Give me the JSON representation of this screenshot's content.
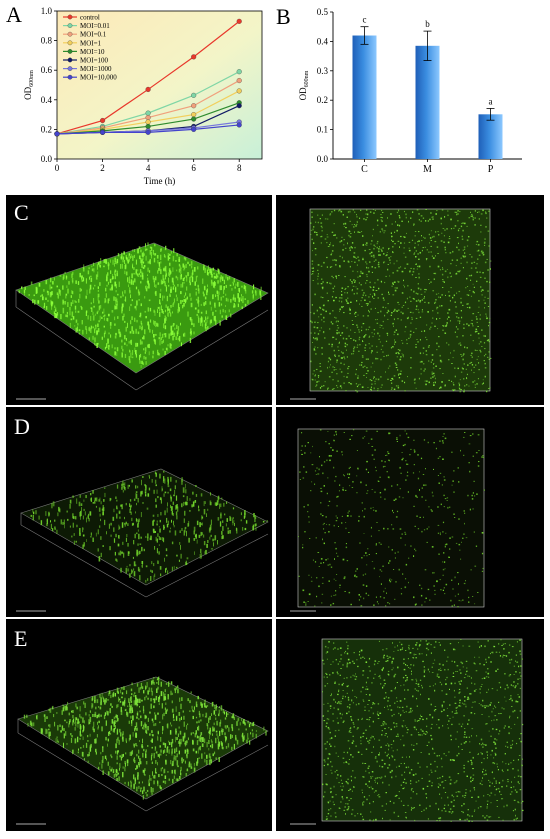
{
  "panels": {
    "a": "A",
    "b": "B",
    "c": "C",
    "d": "D",
    "e": "E"
  },
  "chart_data": [
    {
      "type": "line",
      "panel": "A",
      "x": [
        0,
        2,
        4,
        6,
        8
      ],
      "xlabel": "Time (h)",
      "ylabel_main": "OD",
      "ylabel_sub": "600nm",
      "xlim": [
        0,
        9
      ],
      "ylim": [
        0.0,
        1.0
      ],
      "xticks": [
        0,
        2,
        4,
        6,
        8
      ],
      "yticks": [
        0.0,
        0.2,
        0.4,
        0.6,
        0.8,
        1.0
      ],
      "legend_position": "top-left",
      "background": "gradient",
      "series": [
        {
          "name": "control",
          "color": "#e8382c",
          "values": [
            0.17,
            0.26,
            0.47,
            0.69,
            0.93
          ]
        },
        {
          "name": "MOI=0.01",
          "color": "#7fd6a6",
          "values": [
            0.17,
            0.22,
            0.31,
            0.43,
            0.59
          ]
        },
        {
          "name": "MOI=0.1",
          "color": "#f0a07c",
          "values": [
            0.17,
            0.21,
            0.28,
            0.36,
            0.53
          ]
        },
        {
          "name": "MOI=1",
          "color": "#f2cf5c",
          "values": [
            0.17,
            0.2,
            0.25,
            0.3,
            0.46
          ]
        },
        {
          "name": "MOI=10",
          "color": "#2e8b2e",
          "values": [
            0.17,
            0.19,
            0.22,
            0.27,
            0.38
          ]
        },
        {
          "name": "MOI=100",
          "color": "#111a66",
          "values": [
            0.17,
            0.18,
            0.19,
            0.22,
            0.36
          ]
        },
        {
          "name": "MOI=1000",
          "color": "#7777dd",
          "values": [
            0.17,
            0.18,
            0.19,
            0.21,
            0.25
          ]
        },
        {
          "name": "MOI=10,000",
          "color": "#4444cc",
          "values": [
            0.17,
            0.18,
            0.18,
            0.2,
            0.23
          ]
        }
      ]
    },
    {
      "type": "bar",
      "panel": "B",
      "categories": [
        "C",
        "M",
        "P"
      ],
      "values": [
        0.42,
        0.385,
        0.152
      ],
      "errors": [
        0.03,
        0.05,
        0.02
      ],
      "letters": [
        "c",
        "b",
        "a"
      ],
      "ylabel_main": "OD",
      "ylabel_sub": "600nm",
      "ylim": [
        0.0,
        0.5
      ],
      "yticks": [
        0.0,
        0.1,
        0.2,
        0.3,
        0.4,
        0.5
      ],
      "bar_color": "#3a8de0"
    }
  ]
}
